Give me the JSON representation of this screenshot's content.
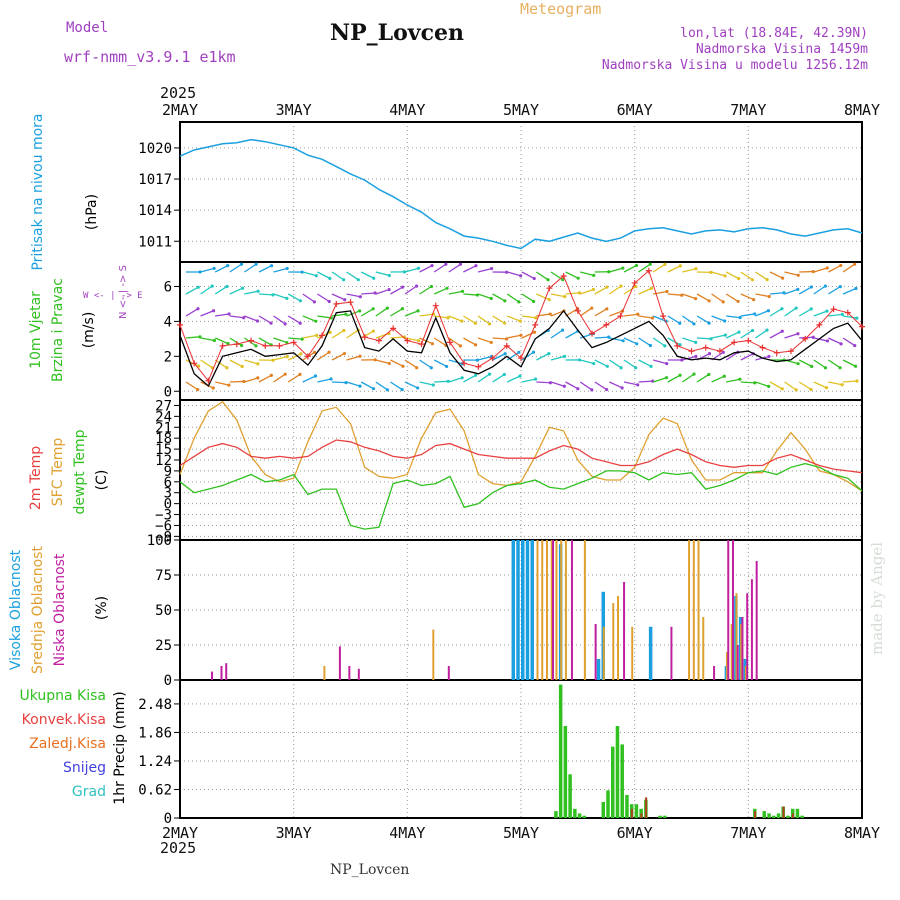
{
  "header": {
    "title": "NP_Lovcen",
    "meteogram_label": "Meteogram",
    "model_label": "Model",
    "model_name": "wrf-nmm_v3.9.1 e1km",
    "info_lonlat": "lon,lat (18.84E, 42.39N)",
    "info_altitude": "Nadmorska Visina 1459m",
    "info_model_altitude": "Nadmorska Visina u modelu 1256.12m"
  },
  "footer": {
    "station": "NP_Lovcen",
    "watermark": "made by Angel",
    "year": "2025"
  },
  "colors": {
    "pressure": "#1aa0e0",
    "wind_speed": "#000000",
    "wind_gust": "#e83030",
    "temp_2m": "#e84040",
    "temp_sfc": "#e0a030",
    "dewpoint": "#30c020",
    "cloud_high": "#1aa0e0",
    "cloud_mid": "#e0a030",
    "cloud_low": "#c020a0",
    "precip_total": "#30c020",
    "precip_conv": "#e84040",
    "precip_frozen": "#e87020",
    "precip_snow": "#4040e0",
    "precip_hail": "#30c0c0"
  },
  "chart_data": [
    {
      "id": "pressure",
      "type": "line",
      "panel_label": "Pritisak na nivou mora",
      "unit_label": "(hPa)",
      "x_ticks": [
        "2MAY",
        "3MAY",
        "4MAY",
        "5MAY",
        "6MAY",
        "7MAY",
        "8MAY"
      ],
      "xlim": [
        0,
        144
      ],
      "ylim": [
        1009,
        1022.5
      ],
      "yticks": [
        1011,
        1014,
        1017,
        1020
      ],
      "series": [
        {
          "x": [
            0,
            3,
            6,
            9,
            12,
            15,
            18,
            21,
            24,
            27,
            30,
            33,
            36,
            39,
            42,
            45,
            48,
            51,
            54,
            57,
            60,
            63,
            66,
            69,
            72,
            75,
            78,
            81,
            84,
            87,
            90,
            93,
            96,
            99,
            102,
            105,
            108,
            111,
            114,
            117,
            120,
            123,
            126,
            129,
            132,
            135,
            138,
            141,
            144
          ],
          "values": [
            1019.2,
            1019.8,
            1020.1,
            1020.4,
            1020.5,
            1020.8,
            1020.6,
            1020.3,
            1020.0,
            1019.3,
            1018.9,
            1018.2,
            1017.5,
            1016.9,
            1016.0,
            1015.3,
            1014.5,
            1013.8,
            1012.8,
            1012.2,
            1011.5,
            1011.3,
            1011.0,
            1010.6,
            1010.3,
            1011.2,
            1011.0,
            1011.4,
            1011.8,
            1011.3,
            1011.0,
            1011.3,
            1012.0,
            1012.2,
            1012.3,
            1012.0,
            1011.7,
            1012.0,
            1012.1,
            1011.9,
            1012.2,
            1012.3,
            1012.1,
            1011.7,
            1011.5,
            1011.8,
            1012.1,
            1012.2,
            1011.8
          ]
        }
      ]
    },
    {
      "id": "wind",
      "type": "line",
      "panel_label": "10m Vjetar",
      "panel_label2": "Brzina i Pravac",
      "unit_label": "(m/s)",
      "compass": "W <- | -> E",
      "compass_ns": "N <- | -> S",
      "xlim": [
        0,
        144
      ],
      "ylim": [
        -0.5,
        7.4
      ],
      "yticks": [
        0,
        2,
        4,
        6
      ],
      "series": [
        {
          "name": "speed",
          "x": [
            0,
            3,
            6,
            9,
            12,
            15,
            18,
            21,
            24,
            27,
            30,
            33,
            36,
            39,
            42,
            45,
            48,
            51,
            54,
            57,
            60,
            63,
            66,
            69,
            72,
            75,
            78,
            81,
            84,
            87,
            90,
            93,
            96,
            99,
            102,
            105,
            108,
            111,
            114,
            117,
            120,
            123,
            126,
            129,
            132,
            135,
            138,
            141,
            144
          ],
          "values": [
            3.2,
            1.0,
            0.3,
            2.0,
            2.2,
            2.4,
            2.0,
            2.1,
            2.2,
            1.5,
            2.6,
            4.5,
            4.6,
            2.5,
            2.3,
            3.0,
            2.3,
            2.2,
            4.2,
            2.2,
            1.2,
            1.0,
            1.4,
            2.0,
            1.4,
            3.0,
            3.6,
            4.6,
            3.5,
            2.5,
            2.8,
            3.2,
            3.6,
            4.0,
            3.2,
            2.0,
            1.8,
            1.9,
            1.8,
            2.2,
            2.3,
            1.9,
            1.7,
            1.8,
            2.4,
            3.0,
            3.6,
            3.9,
            2.9
          ]
        },
        {
          "name": "gust",
          "x": [
            0,
            3,
            6,
            9,
            12,
            15,
            18,
            21,
            24,
            27,
            30,
            33,
            36,
            39,
            42,
            45,
            48,
            51,
            54,
            57,
            60,
            63,
            66,
            69,
            72,
            75,
            78,
            81,
            84,
            87,
            90,
            93,
            96,
            99,
            102,
            105,
            108,
            111,
            114,
            117,
            120,
            123,
            126,
            129,
            132,
            135,
            138,
            141,
            144
          ],
          "values": [
            3.8,
            1.6,
            0.6,
            2.6,
            2.7,
            2.9,
            2.6,
            2.6,
            2.8,
            2.0,
            3.2,
            5.0,
            5.1,
            3.1,
            2.9,
            3.6,
            2.9,
            2.7,
            4.9,
            2.8,
            1.6,
            1.4,
            1.9,
            2.6,
            1.9,
            3.8,
            5.9,
            6.6,
            4.6,
            3.3,
            3.8,
            4.3,
            6.2,
            6.9,
            4.3,
            2.6,
            2.3,
            2.5,
            2.3,
            2.8,
            2.9,
            2.5,
            2.2,
            2.3,
            3.0,
            3.8,
            4.7,
            4.5,
            3.7
          ]
        }
      ]
    },
    {
      "id": "temperature",
      "type": "line",
      "panel_label": "2m Temp",
      "panel_label2": "SFC Temp",
      "panel_label3": "dewpt Temp",
      "unit_label": "(C)",
      "xlim": [
        0,
        144
      ],
      "ylim": [
        -10,
        28.5
      ],
      "yticks": [
        -9,
        -6,
        -3,
        0,
        3,
        6,
        9,
        12,
        15,
        18,
        21,
        24,
        27
      ],
      "series": [
        {
          "name": "2m",
          "x": [
            0,
            3,
            6,
            9,
            12,
            15,
            18,
            21,
            24,
            27,
            30,
            33,
            36,
            39,
            42,
            45,
            48,
            51,
            54,
            57,
            60,
            63,
            66,
            69,
            72,
            75,
            78,
            81,
            84,
            87,
            90,
            93,
            96,
            99,
            102,
            105,
            108,
            111,
            114,
            117,
            120,
            123,
            126,
            129,
            132,
            135,
            138,
            141,
            144
          ],
          "values": [
            10.5,
            13,
            15.5,
            16.5,
            15.5,
            13,
            12.5,
            13,
            12.5,
            13,
            15.5,
            17.5,
            17,
            15.5,
            14.5,
            13,
            12.5,
            13.5,
            16,
            16.5,
            15,
            13.5,
            13,
            12.5,
            12.5,
            12.5,
            14.5,
            16,
            15,
            12.5,
            11.5,
            10.5,
            10.5,
            11.5,
            13.5,
            15,
            13.5,
            11.5,
            10.5,
            10,
            10.5,
            10.5,
            12.5,
            13.5,
            12,
            10.5,
            9.5,
            9,
            8.5
          ]
        },
        {
          "name": "sfc",
          "x": [
            0,
            3,
            6,
            9,
            12,
            15,
            18,
            21,
            24,
            27,
            30,
            33,
            36,
            39,
            42,
            45,
            48,
            51,
            54,
            57,
            60,
            63,
            66,
            69,
            72,
            75,
            78,
            81,
            84,
            87,
            90,
            93,
            96,
            99,
            102,
            105,
            108,
            111,
            114,
            117,
            120,
            123,
            126,
            129,
            132,
            135,
            138,
            141,
            144
          ],
          "values": [
            8,
            18,
            25.5,
            28,
            23,
            13,
            8,
            6,
            7,
            17,
            25.5,
            26.5,
            22,
            10,
            7.5,
            7,
            8,
            18,
            25,
            26,
            20,
            8,
            5.5,
            5,
            6,
            13,
            21,
            20,
            12,
            7.5,
            6.5,
            6.5,
            10,
            19,
            23.5,
            22,
            12,
            6.5,
            6.5,
            8.5,
            8.5,
            8.5,
            14.5,
            19.5,
            15,
            9,
            8,
            6,
            3.5
          ]
        },
        {
          "name": "dewpt",
          "x": [
            0,
            3,
            6,
            9,
            12,
            15,
            18,
            21,
            24,
            27,
            30,
            33,
            36,
            39,
            42,
            45,
            48,
            51,
            54,
            57,
            60,
            63,
            66,
            69,
            72,
            75,
            78,
            81,
            84,
            87,
            90,
            93,
            96,
            99,
            102,
            105,
            108,
            111,
            114,
            117,
            120,
            123,
            126,
            129,
            132,
            135,
            138,
            141,
            144
          ],
          "values": [
            6,
            3,
            4,
            5,
            6.5,
            8,
            6,
            6.5,
            8,
            2.5,
            4,
            4,
            -6,
            -7,
            -6.5,
            5.5,
            6.5,
            5,
            5.5,
            7.5,
            -1,
            0,
            3,
            5,
            5.5,
            6.5,
            4.5,
            4,
            5.5,
            7,
            9,
            9,
            8.5,
            6.5,
            8.5,
            8,
            8.5,
            4,
            5,
            6.5,
            8.5,
            9,
            8,
            10,
            11,
            10,
            8,
            7,
            3.5
          ]
        }
      ]
    },
    {
      "id": "clouds",
      "type": "bar",
      "panel_label": "Visoka Oblacnost",
      "panel_label2": "Srednja Oblacnost",
      "panel_label3": "Niska Oblacnost",
      "unit_label": "(%)",
      "xlim": [
        0,
        144
      ],
      "ylim": [
        0,
        100
      ],
      "yticks": [
        0,
        25,
        50,
        75,
        100
      ],
      "series": [
        {
          "name": "high",
          "x": [
            70,
            71,
            72,
            73,
            74,
            80,
            88,
            89,
            99,
            115,
            117,
            118,
            119
          ],
          "values": [
            100,
            100,
            100,
            100,
            100,
            97,
            15,
            63,
            38,
            10,
            60,
            45,
            15
          ]
        },
        {
          "name": "mid",
          "x": [
            30,
            53,
            75,
            76,
            77,
            78,
            79,
            80,
            81,
            85,
            89,
            91,
            92,
            95,
            107,
            108,
            109,
            110,
            115,
            116,
            117,
            118,
            119
          ],
          "values": [
            10,
            36,
            100,
            100,
            100,
            100,
            100,
            100,
            100,
            100,
            38,
            55,
            60,
            38,
            100,
            100,
            100,
            45,
            20,
            40,
            62,
            40,
            10
          ]
        },
        {
          "name": "low",
          "x": [
            6,
            8,
            9,
            33,
            35,
            37,
            56,
            78,
            82,
            87,
            93,
            103,
            112,
            115,
            116,
            117,
            118,
            119,
            120,
            121
          ],
          "values": [
            6,
            10,
            12,
            24,
            10,
            8,
            10,
            100,
            100,
            40,
            70,
            38,
            10,
            100,
            100,
            25,
            45,
            62,
            72,
            85
          ]
        }
      ]
    },
    {
      "id": "precip",
      "type": "bar",
      "panel_label": "Ukupna Kisa",
      "panel_label2": "Konvek.Kisa",
      "panel_label3": "Zaledj.Kisa",
      "panel_label4": "Snijeg",
      "panel_label5": "Grad",
      "unit_label": "1hr Precip (mm)",
      "xlim": [
        0,
        144
      ],
      "ylim": [
        0,
        3.0
      ],
      "yticks": [
        0,
        0.62,
        1.24,
        1.86,
        2.48
      ],
      "tick_labels": [
        "0",
        "0.62",
        "1.24",
        "1.86",
        "2.48"
      ],
      "series": [
        {
          "name": "total",
          "x": [
            79,
            80,
            81,
            82,
            83,
            84,
            85,
            89,
            90,
            91,
            92,
            93,
            94,
            95,
            96,
            97,
            98,
            101,
            102,
            121,
            123,
            124,
            125,
            126,
            127,
            128,
            129,
            130,
            131
          ],
          "values": [
            0.15,
            2.9,
            2.0,
            0.95,
            0.2,
            0.1,
            0.05,
            0.35,
            0.6,
            1.55,
            2.0,
            1.6,
            0.5,
            0.3,
            0.3,
            0.2,
            0.4,
            0.05,
            0.05,
            0.2,
            0.15,
            0.1,
            0.05,
            0.1,
            0.25,
            0.05,
            0.2,
            0.2,
            0.05
          ]
        },
        {
          "name": "convective",
          "x": [
            95,
            97,
            98,
            121,
            127,
            129
          ],
          "values": [
            0.2,
            0.1,
            0.45,
            0.15,
            0.25,
            0.1
          ]
        }
      ]
    }
  ]
}
